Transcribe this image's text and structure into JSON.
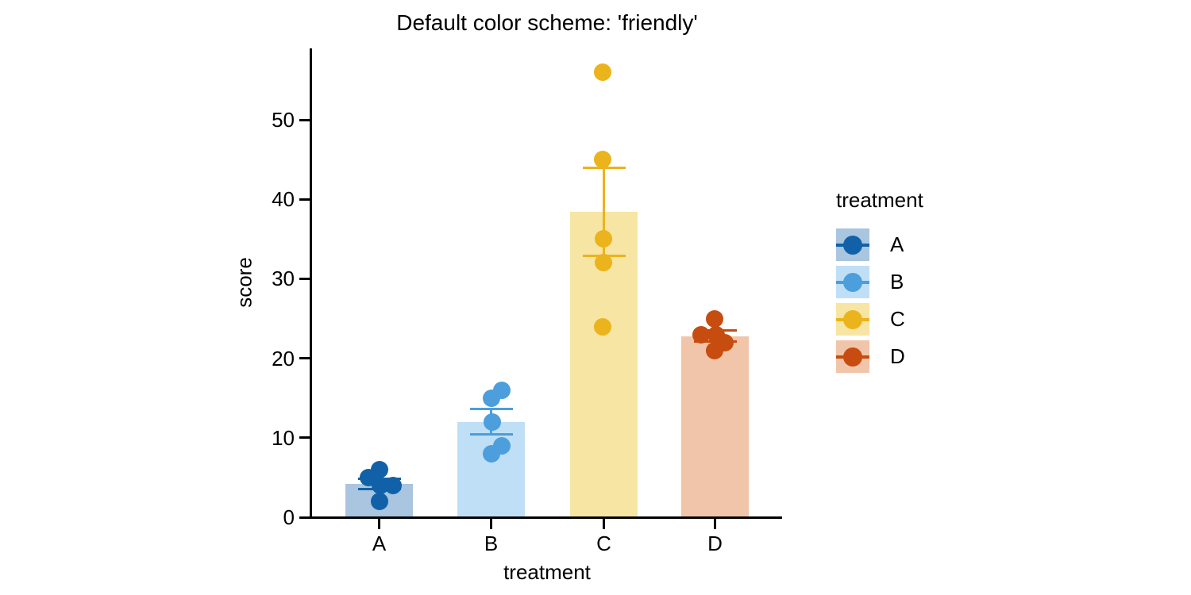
{
  "chart_data": {
    "type": "bar",
    "title": "Default color scheme: 'friendly'",
    "xlabel": "treatment",
    "ylabel": "score",
    "categories": [
      "A",
      "B",
      "C",
      "D"
    ],
    "yticks": [
      0,
      10,
      20,
      30,
      40,
      50
    ],
    "ylim": [
      0,
      59
    ],
    "grid": false,
    "legend": {
      "title": "treatment",
      "position": "right",
      "entries": [
        "A",
        "B",
        "C",
        "D"
      ]
    },
    "series": [
      {
        "name": "A",
        "points": [
          6,
          5,
          4,
          4,
          2
        ],
        "mean": 4.2,
        "sem": 0.66,
        "point_color": "#1161A8",
        "bar_color": "#A9C5DF"
      },
      {
        "name": "B",
        "points": [
          16,
          15,
          12,
          9,
          8
        ],
        "mean": 12.0,
        "sem": 1.58,
        "point_color": "#4C9EDC",
        "bar_color": "#BFDFF6"
      },
      {
        "name": "C",
        "points": [
          56,
          45,
          35,
          32,
          24
        ],
        "mean": 38.4,
        "sem": 5.54,
        "point_color": "#EBB31C",
        "bar_color": "#F7E5A4"
      },
      {
        "name": "D",
        "points": [
          25,
          23,
          23,
          22,
          21
        ],
        "mean": 22.8,
        "sem": 0.66,
        "point_color": "#C64D0F",
        "bar_color": "#F0C5AA"
      }
    ]
  }
}
